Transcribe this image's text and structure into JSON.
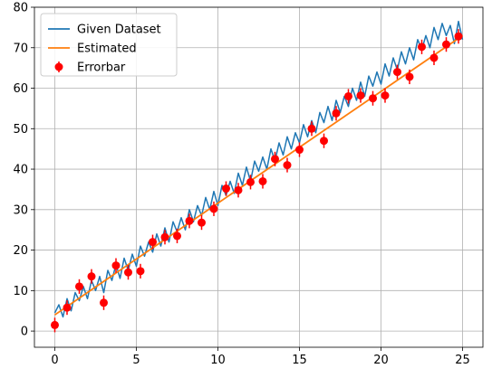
{
  "chart_data": {
    "type": "line",
    "title": "",
    "xlabel": "",
    "ylabel": "",
    "xlim": [
      -1.25,
      26.25
    ],
    "ylim": [
      -4,
      80
    ],
    "xticks": [
      0,
      5,
      10,
      15,
      20,
      25
    ],
    "yticks": [
      0,
      10,
      20,
      30,
      40,
      50,
      60,
      70,
      80
    ],
    "grid": true,
    "legend_position": "top-left",
    "colors": {
      "given": "#1f77b4",
      "estimated": "#ff7f0e",
      "errorbar": "#ff0000"
    },
    "series": [
      {
        "name": "Given Dataset",
        "kind": "line",
        "x": [
          0.0,
          0.25,
          0.5,
          0.75,
          1.0,
          1.25,
          1.5,
          1.75,
          2.0,
          2.25,
          2.5,
          2.75,
          3.0,
          3.25,
          3.5,
          3.75,
          4.0,
          4.25,
          4.5,
          4.75,
          5.0,
          5.25,
          5.5,
          5.75,
          6.0,
          6.25,
          6.5,
          6.75,
          7.0,
          7.25,
          7.5,
          7.75,
          8.0,
          8.25,
          8.5,
          8.75,
          9.0,
          9.25,
          9.5,
          9.75,
          10.0,
          10.25,
          10.5,
          10.75,
          11.0,
          11.25,
          11.5,
          11.75,
          12.0,
          12.25,
          12.5,
          12.75,
          13.0,
          13.25,
          13.5,
          13.75,
          14.0,
          14.25,
          14.5,
          14.75,
          15.0,
          15.25,
          15.5,
          15.75,
          16.0,
          16.25,
          16.5,
          16.75,
          17.0,
          17.25,
          17.5,
          17.75,
          18.0,
          18.25,
          18.5,
          18.75,
          19.0,
          19.25,
          19.5,
          19.75,
          20.0,
          20.25,
          20.5,
          20.75,
          21.0,
          21.25,
          21.5,
          21.75,
          22.0,
          22.25,
          22.5,
          22.75,
          23.0,
          23.25,
          23.5,
          23.75,
          24.0,
          24.25,
          24.5,
          24.75,
          25.0
        ],
        "y": [
          4.5,
          6.5,
          3.5,
          8.0,
          5.0,
          9.5,
          7.5,
          11.0,
          8.0,
          12.5,
          10.0,
          13.5,
          9.5,
          15.0,
          12.5,
          16.5,
          13.0,
          18.0,
          15.0,
          19.0,
          16.0,
          21.0,
          18.5,
          22.0,
          19.5,
          24.0,
          21.0,
          25.5,
          22.0,
          27.0,
          24.5,
          28.0,
          25.0,
          30.0,
          27.0,
          31.0,
          28.5,
          33.0,
          30.0,
          34.5,
          31.0,
          36.0,
          33.5,
          37.0,
          34.0,
          39.0,
          36.0,
          40.5,
          37.0,
          42.0,
          39.5,
          43.0,
          40.0,
          45.0,
          42.0,
          46.5,
          43.5,
          48.0,
          45.0,
          49.0,
          46.5,
          51.0,
          48.0,
          52.0,
          49.0,
          54.0,
          51.5,
          55.5,
          52.0,
          57.0,
          54.0,
          58.0,
          55.5,
          60.0,
          57.0,
          61.5,
          58.0,
          63.0,
          60.5,
          64.0,
          61.0,
          66.0,
          63.0,
          67.5,
          64.5,
          69.0,
          66.0,
          70.0,
          67.0,
          72.0,
          69.5,
          73.0,
          70.0,
          75.0,
          72.0,
          76.0,
          73.0,
          75.5,
          71.0,
          76.5,
          72.0
        ]
      },
      {
        "name": "Estimated",
        "kind": "line",
        "x": [
          0,
          25
        ],
        "y": [
          4.0,
          73.0
        ]
      },
      {
        "name": "Errorbar",
        "kind": "errorbar",
        "x": [
          0.0,
          0.75,
          1.5,
          2.25,
          3.0,
          3.75,
          4.5,
          5.25,
          6.0,
          6.75,
          7.5,
          8.25,
          9.0,
          9.75,
          10.5,
          11.25,
          12.0,
          12.75,
          13.5,
          14.25,
          15.0,
          15.75,
          16.5,
          17.25,
          18.0,
          18.75,
          19.5,
          20.25,
          21.0,
          21.75,
          22.5,
          23.25,
          24.0,
          24.75
        ],
        "y": [
          1.5,
          5.8,
          11.0,
          13.5,
          7.0,
          16.2,
          14.5,
          14.8,
          22.0,
          23.2,
          23.5,
          27.2,
          26.8,
          30.2,
          35.2,
          34.8,
          36.8,
          37.0,
          42.5,
          41.0,
          44.8,
          50.0,
          47.0,
          53.8,
          58.0,
          58.2,
          57.5,
          58.2,
          64.0,
          62.8,
          70.2,
          67.5,
          70.8,
          72.8
        ],
        "yerr": 1.8
      }
    ]
  }
}
